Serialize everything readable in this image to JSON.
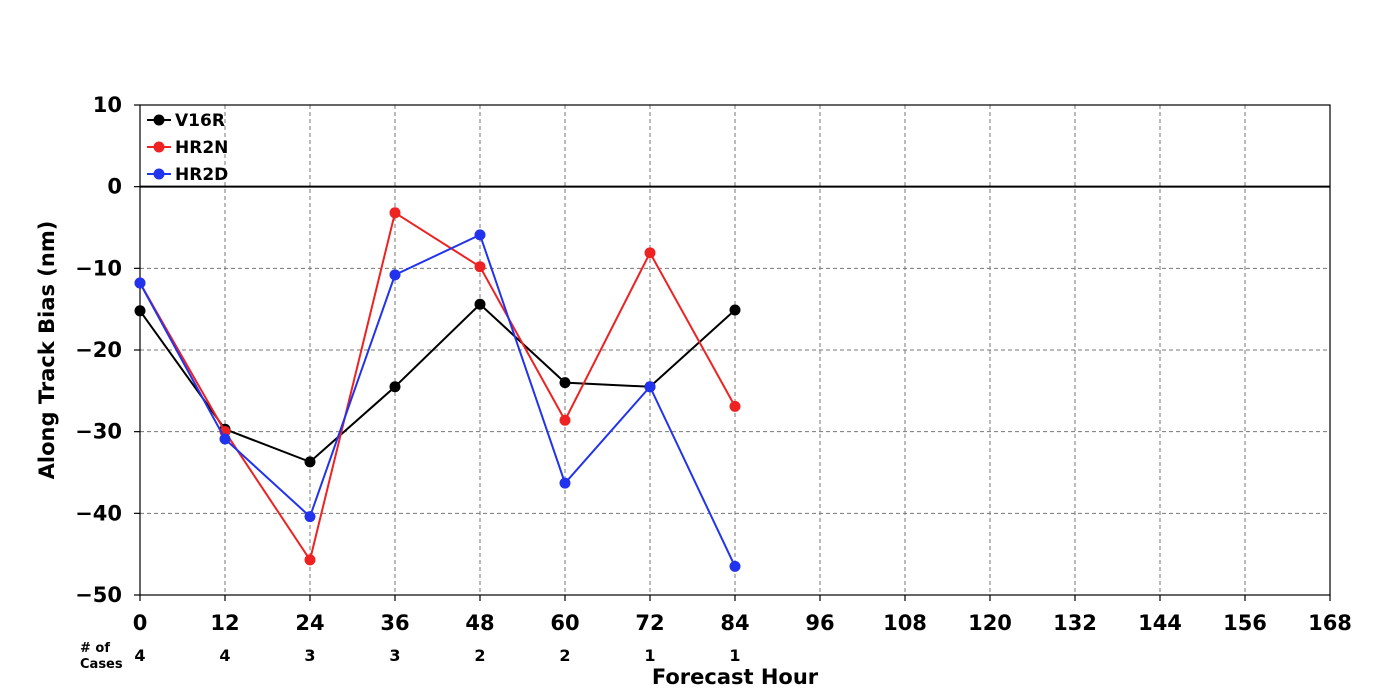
{
  "chart_data": {
    "type": "line",
    "title": "",
    "xlabel": "Forecast Hour",
    "ylabel": "Along Track Bias (nm)",
    "xlim": [
      0,
      168
    ],
    "ylim": [
      -50,
      10
    ],
    "xticks": [
      0,
      12,
      24,
      36,
      48,
      60,
      72,
      84,
      96,
      108,
      120,
      132,
      144,
      156,
      168
    ],
    "xtick_labels": [
      "0",
      "12",
      "24",
      "36",
      "48",
      "60",
      "72",
      "84",
      "96",
      "108",
      "120",
      "132",
      "144",
      "156",
      "168"
    ],
    "yticks": [
      10,
      0,
      -10,
      -20,
      -30,
      -40,
      -50
    ],
    "ytick_labels": [
      "10",
      "0",
      "−10",
      "−20",
      "−30",
      "−40",
      "−50"
    ],
    "grid": true,
    "zero_line": true,
    "legend_position": "top-left",
    "series": [
      {
        "name": "V16R",
        "color": "#000000",
        "x": [
          0,
          12,
          24,
          36,
          48,
          60,
          72,
          84
        ],
        "values": [
          -15.2,
          -29.7,
          -33.7,
          -24.5,
          -14.4,
          -24.0,
          -24.5,
          -15.1
        ]
      },
      {
        "name": "HR2N",
        "color": "#ee2222",
        "x": [
          0,
          12,
          24,
          36,
          48,
          60,
          72,
          84
        ],
        "values": [
          -11.8,
          -30.0,
          -45.7,
          -3.2,
          -9.8,
          -28.6,
          -8.1,
          -26.9
        ]
      },
      {
        "name": "HR2D",
        "color": "#2233ee",
        "x": [
          0,
          12,
          24,
          36,
          48,
          60,
          72,
          84
        ],
        "values": [
          -11.8,
          -30.9,
          -40.4,
          -10.8,
          -5.9,
          -36.3,
          -24.5,
          -46.5
        ]
      }
    ],
    "cases": {
      "label_line1": "# of",
      "label_line2": "Cases",
      "x": [
        0,
        12,
        24,
        36,
        48,
        60,
        72,
        84
      ],
      "values": [
        "4",
        "4",
        "3",
        "3",
        "2",
        "2",
        "1",
        "1"
      ]
    }
  }
}
